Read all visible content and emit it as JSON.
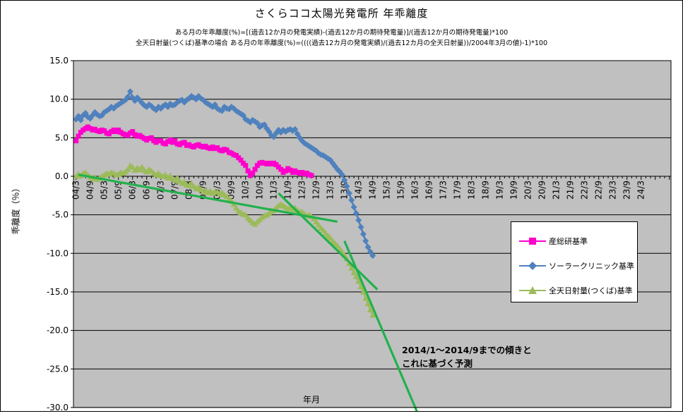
{
  "chart_data": {
    "type": "line",
    "title": "さくらココ太陽光発電所 年乖離度",
    "subtitle_lines": [
      "ある月の年乖離度(%)=[(過去12か月の発電実績)-(過去12か月の期待発電量)]/(過去12か月の期待発電量)*100",
      "全天日射量(つくば)基準の場合 ある月の年乖離度(%)=((((過去12カ月の発電実績)/(過去12カ月の全天日射量))/2004年3月の値)-1)*100"
    ],
    "xlabel": "年月",
    "ylabel": "乖離度（％）",
    "ylim": [
      -30,
      15
    ],
    "ytick_step": 5,
    "ytick_labels": [
      "15.0",
      "10.0",
      "5.0",
      "0.0",
      "-5.0",
      "-10.0",
      "-15.0",
      "-20.0",
      "-25.0",
      "-30.0"
    ],
    "categories": [
      "04/3",
      "04/9",
      "05/3",
      "05/9",
      "06/3",
      "06/9",
      "07/3",
      "07/9",
      "08/3",
      "08/9",
      "09/3",
      "09/9",
      "10/3",
      "10/9",
      "11/3",
      "11/9",
      "12/3",
      "12/9",
      "13/3",
      "13/9",
      "14/3",
      "14/9",
      "15/3",
      "15/9",
      "16/3",
      "16/9",
      "17/3",
      "17/9",
      "18/3",
      "18/9",
      "19/3",
      "19/9",
      "20/3",
      "20/9",
      "21/3",
      "21/9",
      "22/3",
      "22/9",
      "23/3",
      "23/9",
      "24/3"
    ],
    "months_per_category": 6,
    "plot_bg_color": "#C0C0C0",
    "gridline_color": "#000000",
    "legend_position": "middle-right",
    "grid": "horizontal-on",
    "series": [
      {
        "name": "産総研基準",
        "color": "#FF00CC",
        "marker": "square",
        "start_month": 0,
        "values": [
          4.6,
          5.2,
          5.7,
          6.0,
          6.2,
          6.4,
          6.2,
          6.0,
          6.1,
          5.9,
          5.8,
          6.0,
          5.9,
          5.6,
          5.5,
          5.8,
          6.0,
          5.8,
          6.0,
          5.7,
          5.5,
          5.4,
          5.3,
          5.6,
          5.8,
          5.4,
          5.2,
          5.3,
          5.1,
          4.9,
          4.7,
          4.9,
          5.0,
          4.6,
          4.4,
          4.6,
          4.6,
          4.3,
          4.2,
          4.5,
          4.7,
          4.4,
          4.6,
          4.2,
          4.1,
          4.3,
          4.4,
          4.0,
          4.1,
          3.9,
          3.8,
          4.0,
          4.1,
          3.9,
          3.8,
          3.9,
          3.7,
          3.6,
          3.8,
          3.6,
          3.7,
          3.4,
          3.3,
          3.5,
          3.4,
          3.1,
          3.0,
          2.8,
          2.7,
          2.4,
          2.1,
          1.7,
          1.4,
          0.7,
          0.1,
          0.4,
          0.9,
          1.4,
          1.7,
          1.8,
          1.7,
          1.6,
          1.7,
          1.6,
          1.7,
          1.5,
          1.2,
          0.9,
          0.5,
          0.7,
          1.0,
          0.8,
          0.5,
          0.7,
          0.5,
          0.4,
          0.5,
          0.3,
          0.4,
          0.2,
          0.1
        ]
      },
      {
        "name": "ソーラークリニック基準",
        "color": "#4F81BD",
        "marker": "diamond",
        "start_month": 0,
        "values": [
          7.4,
          7.8,
          7.3,
          7.9,
          8.2,
          7.7,
          7.5,
          7.9,
          8.3,
          8.0,
          7.8,
          7.9,
          8.3,
          8.5,
          8.7,
          9.0,
          8.8,
          9.1,
          9.3,
          9.5,
          9.7,
          9.9,
          10.3,
          11.0,
          10.2,
          9.8,
          10.2,
          9.9,
          9.5,
          9.2,
          9.0,
          9.3,
          9.1,
          8.8,
          8.6,
          9.0,
          8.8,
          9.1,
          9.3,
          9.0,
          9.4,
          9.2,
          9.3,
          9.6,
          9.8,
          9.9,
          9.6,
          9.9,
          10.1,
          10.4,
          10.2,
          10.0,
          10.4,
          10.1,
          9.9,
          9.6,
          9.4,
          9.2,
          9.0,
          9.3,
          8.8,
          8.6,
          8.5,
          9.0,
          8.8,
          8.7,
          9.0,
          8.8,
          8.5,
          8.3,
          8.1,
          7.9,
          7.4,
          7.2,
          7.0,
          7.3,
          7.1,
          6.9,
          6.4,
          6.6,
          6.7,
          6.2,
          5.8,
          5.3,
          5.1,
          5.6,
          6.0,
          5.7,
          6.0,
          5.8,
          6.0,
          6.1,
          5.9,
          6.1,
          5.5,
          5.0,
          4.6,
          4.3,
          4.1,
          3.9,
          3.7,
          3.5,
          3.3,
          3.0,
          2.8,
          2.7,
          2.5,
          2.3,
          2.1,
          1.7,
          1.3,
          0.9,
          0.6,
          0.2,
          -0.5,
          -1.3,
          -2.2,
          -3.1,
          -4.0,
          -4.8,
          -5.7,
          -6.6,
          -7.5,
          -8.4,
          -9.2,
          -9.8,
          -10.3
        ]
      },
      {
        "name": "全天日射量(つくば)基準",
        "color": "#9BBB59",
        "marker": "triangle",
        "start_month": 0,
        "values": [
          0.0,
          0.3,
          0.1,
          0.4,
          0.5,
          0.2,
          -0.1,
          -0.3,
          -0.1,
          -0.4,
          -0.2,
          0.0,
          0.2,
          0.4,
          0.3,
          0.5,
          0.4,
          0.2,
          0.3,
          0.5,
          0.4,
          0.6,
          0.9,
          1.4,
          1.2,
          0.8,
          1.1,
          0.9,
          1.2,
          0.8,
          0.6,
          0.9,
          0.7,
          0.4,
          0.2,
          0.4,
          0.1,
          0.0,
          0.2,
          -0.2,
          0.1,
          -0.3,
          -0.5,
          -0.2,
          -0.6,
          -0.9,
          -0.7,
          -1.1,
          -1.2,
          -0.9,
          -1.3,
          -1.6,
          -1.4,
          -1.7,
          -2.0,
          -1.8,
          -2.1,
          -1.9,
          -2.2,
          -2.0,
          -2.0,
          -2.3,
          -2.1,
          -2.4,
          -2.6,
          -2.9,
          -3.2,
          -3.6,
          -4.1,
          -4.5,
          -4.7,
          -4.9,
          -5.0,
          -5.4,
          -5.7,
          -6.0,
          -6.2,
          -5.9,
          -5.6,
          -5.3,
          -5.1,
          -5.0,
          -4.8,
          -4.5,
          -4.4,
          -4.1,
          -3.8,
          -3.6,
          -3.8,
          -4.0,
          -4.2,
          -4.0,
          -4.3,
          -4.1,
          -4.4,
          -4.6,
          -4.6,
          -4.9,
          -5.1,
          -5.0,
          -5.2,
          -5.5,
          -5.9,
          -6.3,
          -6.7,
          -7.0,
          -7.4,
          -7.7,
          -8.0,
          -8.4,
          -8.7,
          -9.0,
          -9.4,
          -9.8,
          -10.2,
          -10.7,
          -11.3,
          -11.9,
          -12.5,
          -13.0,
          -13.6,
          -14.3,
          -15.0,
          -15.8,
          -16.5,
          -17.3,
          -18.0
        ]
      }
    ],
    "trend_lines": [
      {
        "name": "trend-2004-2013",
        "color": "#22B14C",
        "points": [
          [
            1,
            0.2
          ],
          [
            111,
            -5.9
          ]
        ]
      },
      {
        "name": "trend-2011-2014",
        "color": "#22B14C",
        "points": [
          [
            86,
            -2.2
          ],
          [
            128,
            -14.7
          ]
        ]
      },
      {
        "name": "trend-forecast-2014",
        "color": "#22B14C",
        "points": [
          [
            114,
            -8.4
          ],
          [
            146,
            -31.4
          ]
        ]
      }
    ],
    "annotation": {
      "lines": [
        "2014/1～2014/9までの傾きと",
        "これに基づく予測"
      ]
    }
  }
}
